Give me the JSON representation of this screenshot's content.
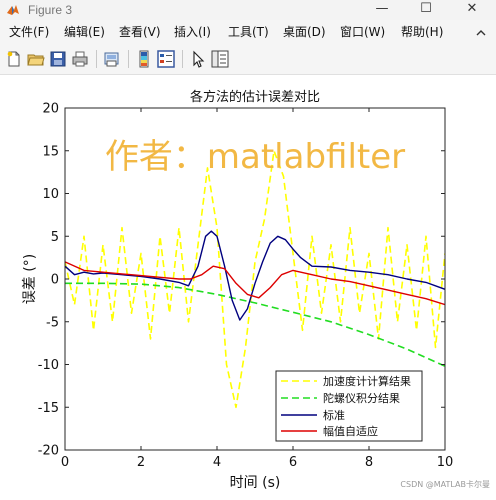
{
  "window": {
    "title": "Figure 3",
    "minimize_glyph": "—",
    "maximize_glyph": "☐",
    "close_glyph": "✕"
  },
  "menu": {
    "items": [
      {
        "label": "文件(F)"
      },
      {
        "label": "编辑(E)"
      },
      {
        "label": "查看(V)"
      },
      {
        "label": "插入(I)"
      },
      {
        "label": "工具(T)"
      },
      {
        "label": "桌面(D)"
      },
      {
        "label": "窗口(W)"
      },
      {
        "label": "帮助(H)"
      }
    ]
  },
  "toolbar": {
    "icons": [
      "new-figure-icon",
      "open-file-icon",
      "save-icon",
      "print-icon",
      "print-preview-icon",
      "colorbar-icon",
      "legend-icon",
      "pointer-icon",
      "property-inspector-icon"
    ]
  },
  "watermark": "作者：matlabfilter",
  "credit": "CSDN @MATLAB卡尔曼",
  "colors": {
    "accel": "#ffff00",
    "gyro": "#22dd22",
    "standard": "#00007f",
    "adaptive": "#dd0000",
    "watermark": "#f2b53a"
  },
  "chart_data": {
    "type": "line",
    "title": "各方法的估计误差对比",
    "xlabel": "时间 (s)",
    "ylabel": "误差 (°)",
    "xlim": [
      0,
      10
    ],
    "ylim": [
      -20,
      20
    ],
    "xticks": [
      0,
      2,
      4,
      6,
      8,
      10
    ],
    "yticks": [
      -20,
      -15,
      -10,
      -5,
      0,
      5,
      10,
      15,
      20
    ],
    "grid": false,
    "legend_position": "bottom-right",
    "series": [
      {
        "name": "加速度计计算结果",
        "style": "dashed",
        "color": "#ffff00",
        "x": [
          0,
          0.25,
          0.5,
          0.75,
          1,
          1.25,
          1.5,
          1.75,
          2,
          2.25,
          2.5,
          2.75,
          3,
          3.25,
          3.5,
          3.75,
          4,
          4.25,
          4.5,
          4.75,
          5,
          5.25,
          5.5,
          5.75,
          6,
          6.25,
          6.5,
          6.75,
          7,
          7.25,
          7.5,
          7.75,
          8,
          8.25,
          8.5,
          8.75,
          9,
          9.25,
          9.5,
          9.75,
          10
        ],
        "y": [
          2,
          -3,
          5,
          -6,
          4,
          -5,
          6,
          -4,
          3,
          -7,
          5,
          -4,
          6,
          -5,
          4,
          13,
          6,
          -10,
          -15,
          -8,
          2,
          7,
          15,
          12,
          3,
          -6,
          5,
          -4,
          4,
          -5,
          6,
          -4,
          3,
          -7,
          6,
          -5,
          4,
          -6,
          5,
          -8,
          3
        ]
      },
      {
        "name": "陀螺仪积分结果",
        "style": "dashed",
        "color": "#22dd22",
        "x": [
          0,
          1,
          2,
          3,
          4,
          5,
          6,
          7,
          8,
          9,
          10
        ],
        "y": [
          -0.5,
          -0.5,
          -0.6,
          -1.0,
          -1.8,
          -2.8,
          -3.9,
          -5.0,
          -6.5,
          -8.2,
          -10.2
        ]
      },
      {
        "name": "标准",
        "style": "solid",
        "color": "#00007f",
        "x": [
          0,
          0.25,
          0.5,
          0.75,
          1,
          1.5,
          2,
          2.5,
          3,
          3.25,
          3.5,
          3.7,
          3.85,
          4,
          4.2,
          4.4,
          4.6,
          4.8,
          5,
          5.2,
          5.4,
          5.6,
          5.8,
          6,
          6.2,
          6.5,
          7,
          7.5,
          8,
          8.5,
          9,
          9.5,
          10
        ],
        "y": [
          1.5,
          0.5,
          0.8,
          0.6,
          0.7,
          0.5,
          0.3,
          0.0,
          -0.4,
          -0.8,
          1.5,
          5.0,
          5.6,
          5.0,
          1.5,
          -2.5,
          -4.8,
          -3.5,
          -0.5,
          2.0,
          4.2,
          5.0,
          4.6,
          3.5,
          2.5,
          1.5,
          1.4,
          1.0,
          0.8,
          0.5,
          0.0,
          -0.4,
          -1.2
        ]
      },
      {
        "name": "幅值自适应",
        "style": "solid",
        "color": "#dd0000",
        "x": [
          0,
          0.5,
          1,
          1.5,
          2,
          2.5,
          3,
          3.3,
          3.6,
          3.9,
          4.2,
          4.5,
          4.8,
          5.1,
          5.4,
          5.7,
          6,
          6.5,
          7,
          7.5,
          8,
          8.5,
          9,
          9.5,
          10
        ],
        "y": [
          2.0,
          1.0,
          0.8,
          0.6,
          0.4,
          0.2,
          0.0,
          0.0,
          0.5,
          1.5,
          1.2,
          -0.5,
          -1.8,
          -2.2,
          -1.0,
          0.5,
          1.0,
          0.5,
          0.0,
          -0.3,
          -0.8,
          -1.3,
          -1.8,
          -2.3,
          -3.0
        ]
      }
    ]
  }
}
